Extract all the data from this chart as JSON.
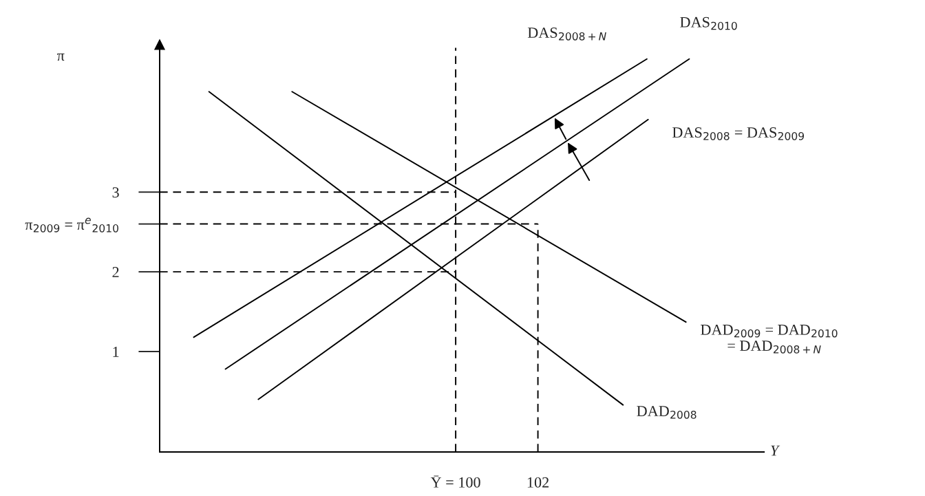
{
  "chart_data": {
    "type": "line",
    "xlabel": "Y",
    "ylabel": "π",
    "xlim": [
      92.8,
      107.5
    ],
    "ylim": [
      -0.26,
      4.85
    ],
    "xticks": [
      {
        "value": 100,
        "label": "Ȳ = 100"
      },
      102
    ],
    "yticks": [
      1,
      2,
      {
        "value": 2.6,
        "label": "π$_{2009}$ = π$^{e}$$_{2010}$"
      },
      3
    ],
    "grid": false,
    "legend": false,
    "tick_labels": "xy",
    "series": [
      {
        "name": "DAD$_{2008}$",
        "color": "#000000",
        "x": [
          94.0,
          104.07
        ],
        "values": [
          4.26,
          0.33
        ]
      },
      {
        "name": "DAD$_{2009}$ = DAD$_{2010}$\n       = DAD$_{2008+N}$",
        "color": "#000000",
        "x": [
          96.02,
          105.6
        ],
        "values": [
          4.26,
          1.37
        ]
      },
      {
        "name": "DAS$_{2008}$ = DAS$_{2009}$",
        "color": "#000000",
        "x": [
          95.2,
          104.68
        ],
        "values": [
          0.4,
          3.91
        ]
      },
      {
        "name": "DAS$_{2010}$",
        "color": "#000000",
        "x": [
          94.4,
          105.68
        ],
        "values": [
          0.78,
          4.67
        ]
      },
      {
        "name": "DAS$_{2008+N}$",
        "color": "#000000",
        "x": [
          93.63,
          104.65
        ],
        "values": [
          1.18,
          4.67
        ]
      },
      {
        "color": "#000000",
        "line_style": "dashed",
        "x": [
          100,
          100
        ],
        "values": [
          -0.26,
          4.81
        ]
      },
      {
        "color": "#000000",
        "line_style": "dashed",
        "x": [
          102,
          102
        ],
        "values": [
          -0.26,
          2.6
        ]
      },
      {
        "color": "#000000",
        "line_style": "dashed",
        "x": [
          92.8,
          102
        ],
        "values": [
          2.6,
          2.6
        ]
      },
      {
        "color": "#000000",
        "line_style": "dashed",
        "x": [
          92.8,
          100
        ],
        "values": [
          3,
          3
        ]
      },
      {
        "color": "#000000",
        "line_style": "dashed",
        "x": [
          92.8,
          100
        ],
        "values": [
          2,
          2
        ]
      }
    ]
  }
}
